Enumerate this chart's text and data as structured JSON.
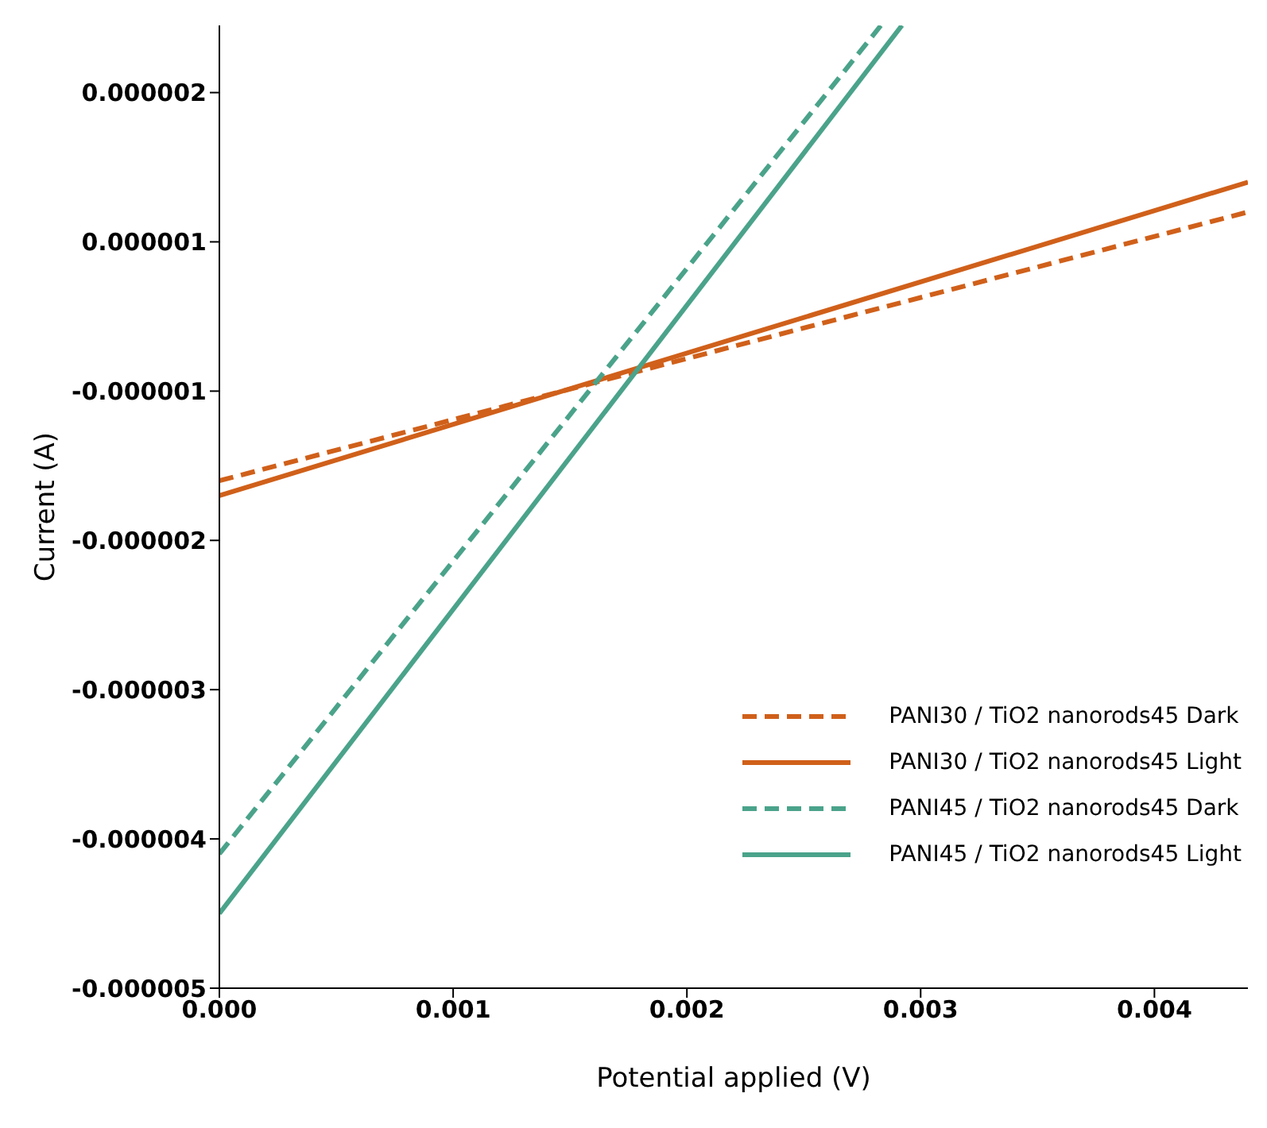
{
  "chart_data": {
    "type": "line",
    "xlabel": "Potential applied (V)",
    "ylabel": "Current (A)",
    "xlim": [
      0,
      0.0044
    ],
    "ylim": [
      -4.5e-06,
      1.95e-06
    ],
    "xticks": [
      {
        "value": 0,
        "label": "0.000"
      },
      {
        "value": 0.001,
        "label": "0.001"
      },
      {
        "value": 0.002,
        "label": "0.002"
      },
      {
        "value": 0.003,
        "label": "0.003"
      },
      {
        "value": 0.004,
        "label": "0.004"
      }
    ],
    "yticks": [
      {
        "value": 1.5e-06,
        "label": "0.000002"
      },
      {
        "value": 5e-07,
        "label": "0.000001"
      },
      {
        "value": -5e-07,
        "label": "-0.000001"
      },
      {
        "value": -1.5e-06,
        "label": "-0.000002"
      },
      {
        "value": -2.5e-06,
        "label": "-0.000003"
      },
      {
        "value": -3.5e-06,
        "label": "-0.000004"
      },
      {
        "value": -4.5e-06,
        "label": "-0.000005"
      }
    ],
    "grid": false,
    "legend": "bottom right",
    "marker": "none",
    "series": [
      {
        "name": "PANI30 / TiO2 nanorods45 Dark",
        "color": "#d0601a",
        "line_style": "dashed",
        "x": [
          0,
          0.0044
        ],
        "values": [
          -1.1e-06,
          7e-07
        ]
      },
      {
        "name": "PANI30 / TiO2 nanorods45 Light",
        "color": "#d0601a",
        "line_style": "solid",
        "x": [
          0,
          0.0044
        ],
        "values": [
          -1.2e-06,
          9e-07
        ]
      },
      {
        "name": "PANI45 / TiO2 nanorods45 Dark",
        "color": "#4aa38a",
        "line_style": "dashed",
        "x": [
          0,
          0.00283
        ],
        "values": [
          -3.6e-06,
          1.95e-06
        ]
      },
      {
        "name": "PANI45 / TiO2 nanorods45 Light",
        "color": "#4aa38a",
        "line_style": "solid",
        "x": [
          0,
          0.00292
        ],
        "values": [
          -4e-06,
          1.95e-06
        ]
      }
    ]
  }
}
